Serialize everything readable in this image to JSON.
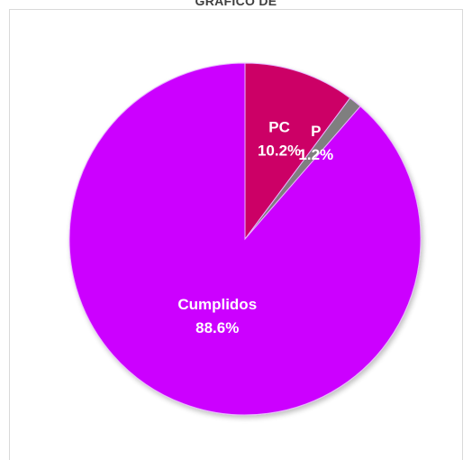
{
  "chart_data": {
    "type": "pie",
    "title": "GRÁFICO DE",
    "categories": [
      "PC",
      "P",
      "Cumplidos"
    ],
    "values": [
      10.2,
      1.2,
      88.6
    ],
    "value_labels": [
      "10.2%",
      "1.2%",
      "88.6%"
    ],
    "colors": [
      "#cc0066",
      "#7f7f7f",
      "#cc00ff"
    ],
    "legend": "none"
  }
}
